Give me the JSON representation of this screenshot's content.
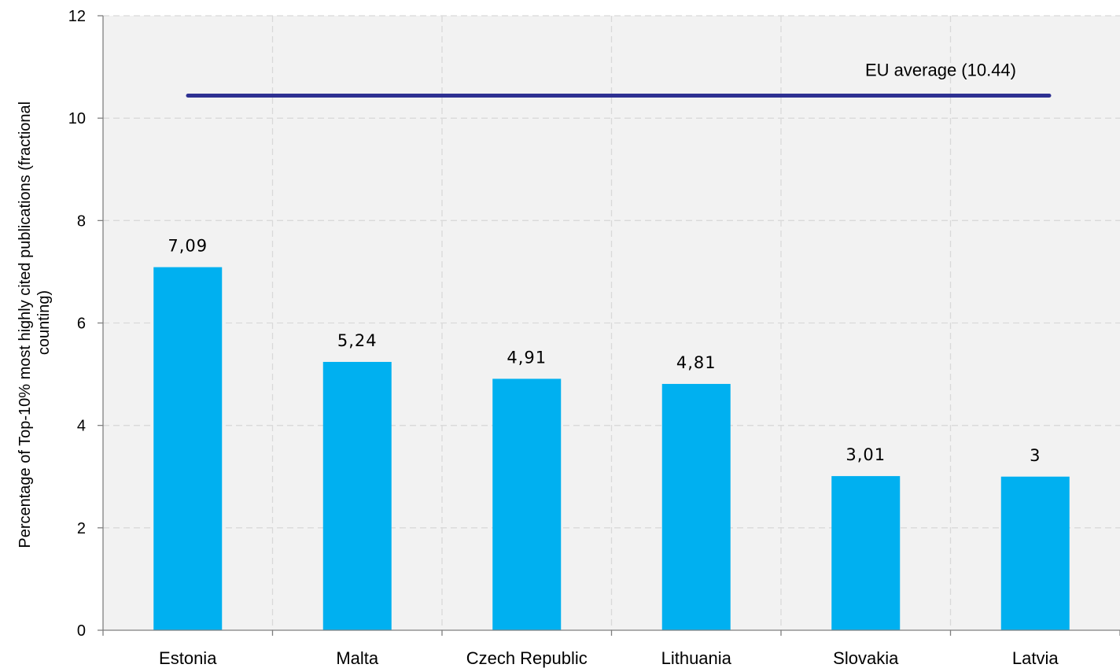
{
  "chart_data": {
    "type": "bar",
    "title": "",
    "xlabel": "",
    "ylabel_line1": "Percentage of Top-10% most highly cited publications (fractional",
    "ylabel_line2": "counting)",
    "categories": [
      "Estonia",
      "Malta",
      "Czech Republic",
      "Lithuania",
      "Slovakia",
      "Latvia"
    ],
    "values": [
      7.09,
      5.24,
      4.91,
      4.81,
      3.01,
      3
    ],
    "value_labels": [
      "7,09",
      "5,24",
      "4,91",
      "4,81",
      "3,01",
      "3"
    ],
    "ylim": [
      0,
      12
    ],
    "yticks": [
      0,
      2,
      4,
      6,
      8,
      10,
      12
    ],
    "grid": true,
    "reference_line": {
      "value": 10.44,
      "label": "EU average (10.44)"
    },
    "colors": {
      "bar": "#00b0f0",
      "reference": "#2e3192",
      "plot_bg": "#f2f2f2",
      "grid": "#d9d9d9"
    }
  }
}
